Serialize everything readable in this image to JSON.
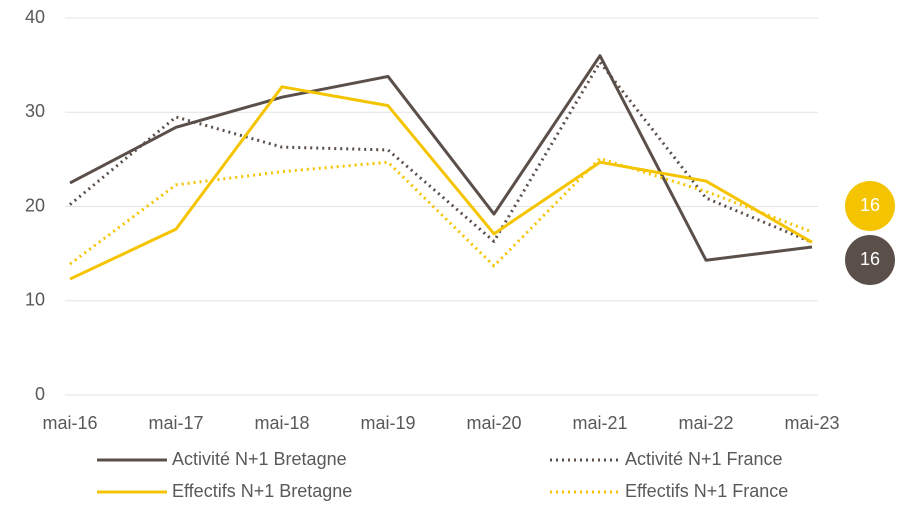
{
  "chart_data": {
    "type": "line",
    "categories": [
      "mai-16",
      "mai-17",
      "mai-18",
      "mai-19",
      "mai-20",
      "mai-21",
      "mai-22",
      "mai-23"
    ],
    "ylim": [
      0,
      40
    ],
    "yticks": [
      0,
      10,
      20,
      30,
      40
    ],
    "grid": true,
    "series": [
      {
        "name": "Activité N+1 Bretagne",
        "color": "#5b4f4a",
        "dash": "solid",
        "values": [
          22.5,
          28.4,
          31.6,
          33.8,
          19.2,
          36.0,
          14.3,
          15.7
        ],
        "value_labels": [
          null,
          null,
          null,
          null,
          null,
          null,
          null,
          "16"
        ]
      },
      {
        "name": "Activité N+1 France",
        "color": "#5b4f4a",
        "dash": "dotted",
        "values": [
          20.2,
          29.5,
          26.3,
          26.0,
          16.3,
          35.3,
          20.9,
          16.2
        ]
      },
      {
        "name": "Effectifs N+1 Bretagne",
        "color": "#f5c400",
        "dash": "solid",
        "values": [
          12.3,
          17.6,
          32.7,
          30.7,
          17.1,
          24.7,
          22.7,
          16.2
        ],
        "value_labels": [
          null,
          null,
          null,
          null,
          null,
          null,
          null,
          "16"
        ]
      },
      {
        "name": "Effectifs N+1 France",
        "color": "#f5c400",
        "dash": "dotted",
        "values": [
          13.9,
          22.3,
          23.7,
          24.7,
          13.7,
          25.1,
          21.6,
          17.3
        ]
      }
    ]
  }
}
